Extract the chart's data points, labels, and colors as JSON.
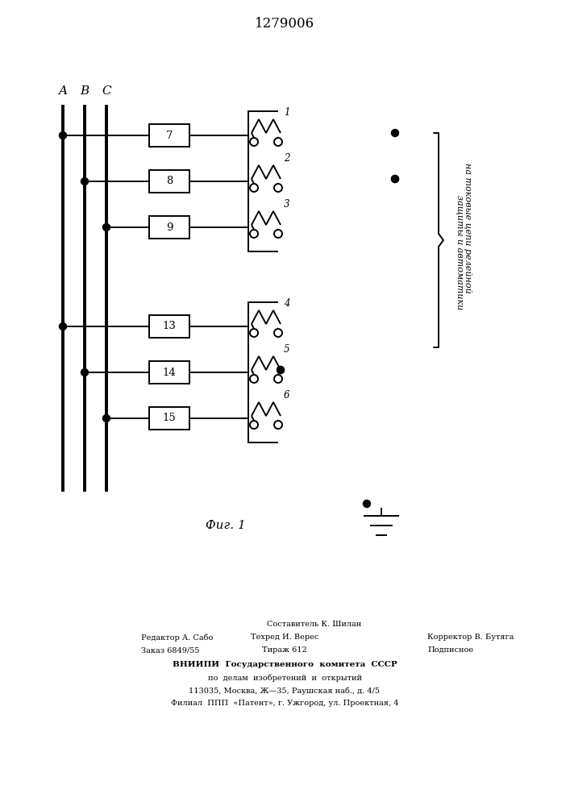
{
  "title": "1279006",
  "fig_label": "Фиг. 1",
  "bg_color": "#ffffff",
  "line_color": "#000000",
  "side_text_1": "на токовые цепи релейной",
  "side_text_2": "защиты и автоматики",
  "bottom_line0": "Составитель К. Шилан",
  "bottom_line1_left": "Редактор А. Сабо",
  "bottom_line1_mid": "Техред И. Верес",
  "bottom_line1_right": "Корректор В. Бутяга",
  "bottom_line2_left": "Заказ 6849/55",
  "bottom_line2_mid": "Тираж 612",
  "bottom_line2_right": "Подписное",
  "bottom_line3": "ВНИИПИ  Государственного  комитета  СССР",
  "bottom_line4": "по  делам  изобретений  и  открытий",
  "bottom_line5": "113035, Москва, Ж—35, Раушская наб., д. 4/5",
  "bottom_line6": "Филиал  ППП  «Патент», г. Ужгород, ул. Проектная, 4"
}
